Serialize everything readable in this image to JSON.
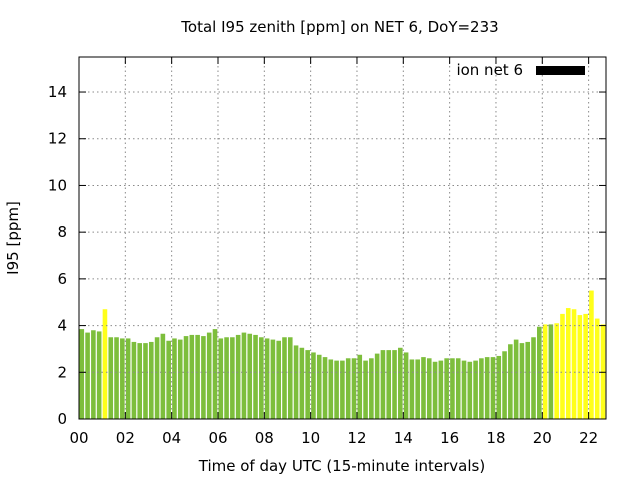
{
  "chart_data": {
    "type": "bar",
    "title": "Total I95 zenith [ppm] on NET 6, DoY=233",
    "xlabel": "Time of day UTC (15-minute intervals)",
    "ylabel": "I95 [ppm]",
    "xlim": [
      0,
      22.75
    ],
    "ylim": [
      0,
      15.5
    ],
    "x_ticks": [
      "00",
      "02",
      "04",
      "06",
      "08",
      "10",
      "12",
      "14",
      "16",
      "18",
      "20",
      "22"
    ],
    "y_ticks": [
      "0",
      "2",
      "4",
      "6",
      "8",
      "10",
      "12",
      "14"
    ],
    "grid": true,
    "legend": {
      "position": "top-right",
      "label": "ion net 6",
      "color": "#000000"
    },
    "colors": {
      "normal": "#7dbe3c",
      "highlight": "#ffff1a"
    },
    "interval_hours": 0.25,
    "values": [
      3.85,
      3.7,
      3.8,
      3.75,
      4.7,
      3.5,
      3.5,
      3.45,
      3.45,
      3.3,
      3.25,
      3.25,
      3.3,
      3.5,
      3.65,
      3.35,
      3.45,
      3.4,
      3.55,
      3.6,
      3.6,
      3.55,
      3.7,
      3.85,
      3.45,
      3.5,
      3.5,
      3.6,
      3.7,
      3.65,
      3.6,
      3.5,
      3.45,
      3.4,
      3.35,
      3.5,
      3.5,
      3.15,
      3.05,
      2.95,
      2.85,
      2.75,
      2.65,
      2.55,
      2.5,
      2.5,
      2.6,
      2.6,
      2.75,
      2.5,
      2.6,
      2.8,
      2.95,
      2.95,
      2.95,
      3.05,
      2.85,
      2.55,
      2.55,
      2.65,
      2.6,
      2.45,
      2.5,
      2.6,
      2.6,
      2.6,
      2.5,
      2.45,
      2.5,
      2.6,
      2.65,
      2.65,
      2.7,
      2.9,
      3.2,
      3.4,
      3.25,
      3.3,
      3.5,
      3.95,
      4.05,
      4.05,
      4.1,
      4.5,
      4.75,
      4.7,
      4.45,
      4.5,
      5.5,
      4.3,
      4.05
    ],
    "highlighted_indices": [
      4,
      80,
      82,
      83,
      84,
      85,
      86,
      87,
      88,
      89,
      90
    ]
  }
}
